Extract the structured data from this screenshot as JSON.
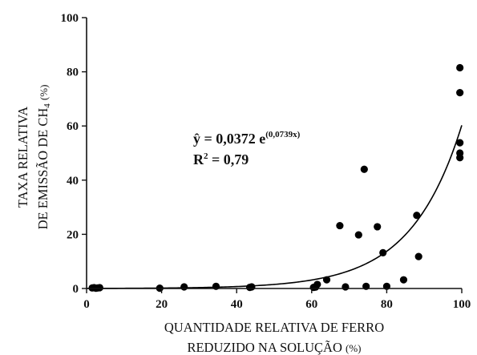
{
  "chart_data": {
    "type": "scatter",
    "title": "",
    "xlabel": {
      "line1": "QUANTIDADE RELATIVA DE FERRO",
      "line2": "REDUZIDO NA SOLUÇÃO",
      "unit": "(%)"
    },
    "ylabel": {
      "line1": "TAXA RELATIVA",
      "line2_prefix": "DE EMISSÃO DE CH",
      "line2_sub": "4",
      "unit": "(%)"
    },
    "xlim": [
      0,
      100
    ],
    "ylim": [
      0,
      100
    ],
    "xticks": [
      0,
      20,
      40,
      60,
      80,
      100
    ],
    "yticks": [
      0,
      20,
      40,
      60,
      80,
      100
    ],
    "grid": false,
    "legend": "none",
    "series": [
      {
        "points": [
          [
            1.5,
            0.2
          ],
          [
            2.0,
            0.3
          ],
          [
            2.5,
            0.1
          ],
          [
            3.0,
            0.2
          ],
          [
            3.5,
            0.3
          ],
          [
            19.5,
            0.1
          ],
          [
            26.0,
            0.6
          ],
          [
            34.5,
            0.8
          ],
          [
            43.5,
            0.4
          ],
          [
            44.0,
            0.6
          ],
          [
            60.5,
            0.4
          ],
          [
            61.0,
            0.5
          ],
          [
            61.5,
            1.5
          ],
          [
            64.0,
            3.2
          ],
          [
            67.5,
            23.2
          ],
          [
            69.0,
            0.6
          ],
          [
            72.5,
            19.8
          ],
          [
            74.0,
            44.0
          ],
          [
            74.5,
            0.8
          ],
          [
            77.5,
            22.8
          ],
          [
            79.0,
            13.2
          ],
          [
            80.0,
            0.8
          ],
          [
            84.5,
            3.2
          ],
          [
            88.0,
            27.0
          ],
          [
            88.5,
            11.8
          ],
          [
            99.5,
            81.5
          ],
          [
            99.5,
            72.3
          ],
          [
            99.5,
            53.8
          ],
          [
            99.5,
            50.0
          ],
          [
            99.5,
            48.3
          ]
        ],
        "color": "#000000"
      }
    ],
    "fit": {
      "type": "exponential",
      "a": 0.0372,
      "b": 0.0739,
      "color": "#000000"
    },
    "annotation": {
      "equation_lhs": "ŷ = 0,0372 e",
      "equation_exp": "(0,0739x)",
      "r2_lhs": "R",
      "r2_sup": "2",
      "r2_rhs": " = 0,79"
    }
  }
}
